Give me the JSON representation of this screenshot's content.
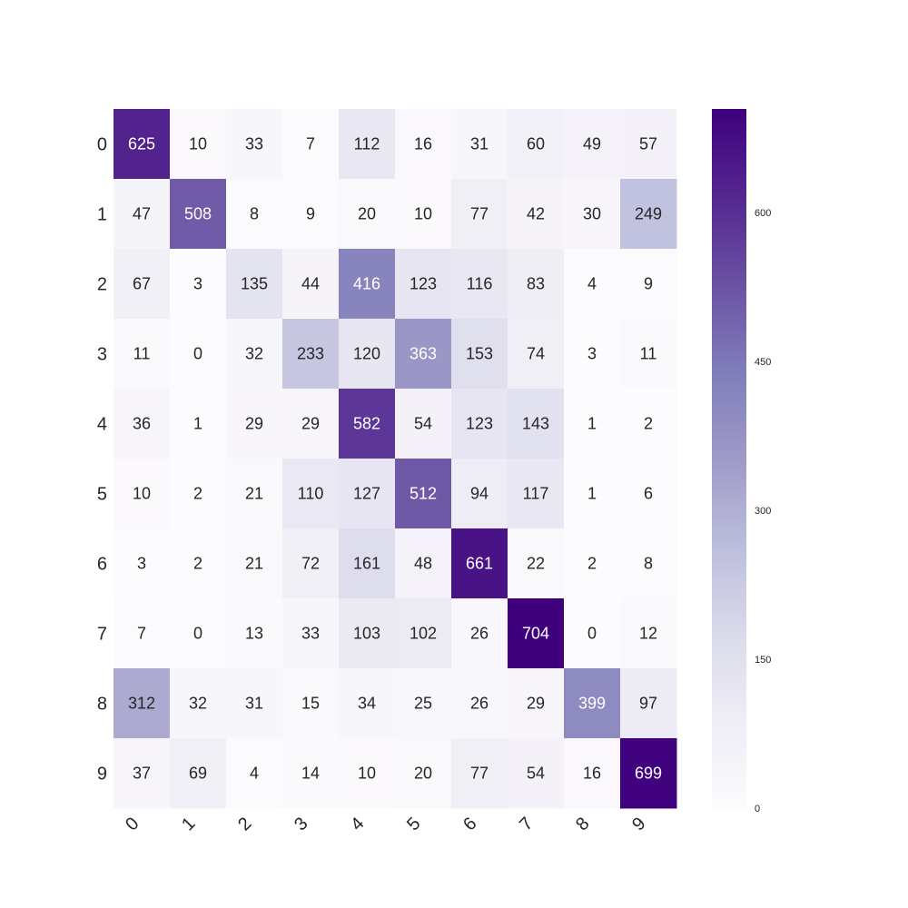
{
  "chart_data": {
    "type": "heatmap",
    "title": "",
    "xlabel": "",
    "ylabel": "",
    "x_categories": [
      "0",
      "1",
      "2",
      "3",
      "4",
      "5",
      "6",
      "7",
      "8",
      "9"
    ],
    "y_categories": [
      "0",
      "1",
      "2",
      "3",
      "4",
      "5",
      "6",
      "7",
      "8",
      "9"
    ],
    "values": [
      [
        625,
        10,
        33,
        7,
        112,
        16,
        31,
        60,
        49,
        57
      ],
      [
        47,
        508,
        8,
        9,
        20,
        10,
        77,
        42,
        30,
        249
      ],
      [
        67,
        3,
        135,
        44,
        416,
        123,
        116,
        83,
        4,
        9
      ],
      [
        11,
        0,
        32,
        233,
        120,
        363,
        153,
        74,
        3,
        11
      ],
      [
        36,
        1,
        29,
        29,
        582,
        54,
        123,
        143,
        1,
        2
      ],
      [
        10,
        2,
        21,
        110,
        127,
        512,
        94,
        117,
        1,
        6
      ],
      [
        3,
        2,
        21,
        72,
        161,
        48,
        661,
        22,
        2,
        8
      ],
      [
        7,
        0,
        13,
        33,
        103,
        102,
        26,
        704,
        0,
        12
      ],
      [
        312,
        32,
        31,
        15,
        34,
        25,
        26,
        29,
        399,
        97
      ],
      [
        37,
        69,
        4,
        14,
        10,
        20,
        77,
        54,
        16,
        699
      ]
    ],
    "annotations": "cell values shown",
    "colormap": "purples",
    "colors": [
      "#fcfbfd",
      "#efedf5",
      "#dadaeb",
      "#bcbddc",
      "#9e9ac8",
      "#807dba",
      "#6a51a3",
      "#54278f",
      "#3f007d"
    ],
    "colorbar": {
      "range": [
        0,
        704
      ],
      "ticks": [
        0,
        150,
        300,
        450,
        600
      ],
      "tick_labels": [
        "0",
        "150",
        "300",
        "450",
        "600"
      ],
      "position": "right"
    },
    "grid": false,
    "legend": "colorbar-right"
  }
}
